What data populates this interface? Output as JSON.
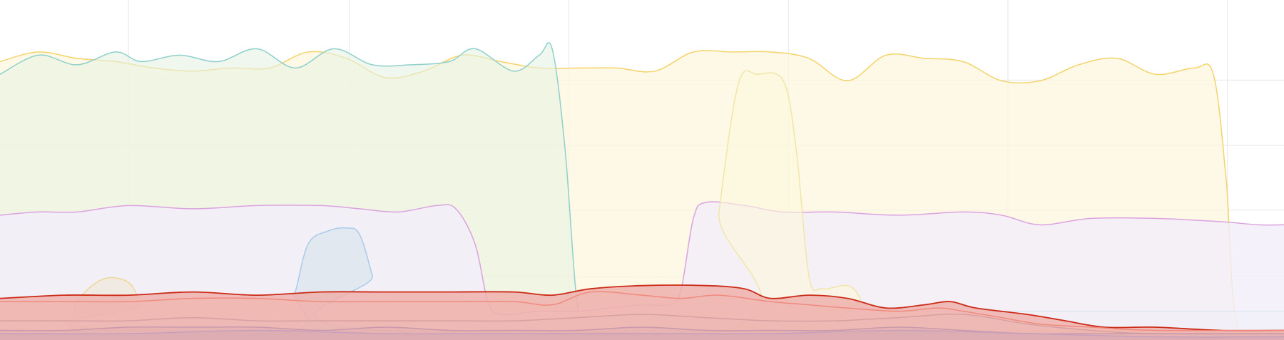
{
  "chart_data": {
    "type": "area",
    "title": "",
    "xlabel": "",
    "ylabel": "",
    "grid": true,
    "legend": "none",
    "x_range": [
      0,
      100
    ],
    "y_range": [
      0,
      100
    ],
    "x_grid": [
      10,
      27.2,
      44.3,
      61.4,
      78.5,
      95.6
    ],
    "y_grid": [
      19.8,
      40.6,
      60.8,
      81.2
    ],
    "series": [
      {
        "id": "s-yellow",
        "color": "#f3d36b",
        "fill": "#fdf6dc",
        "fill_opacity": 0.7,
        "points": [
          [
            0,
            87
          ],
          [
            3,
            90
          ],
          [
            6,
            88
          ],
          [
            9,
            87
          ],
          [
            12,
            85
          ],
          [
            15,
            84
          ],
          [
            18,
            85
          ],
          [
            21,
            85
          ],
          [
            24,
            90
          ],
          [
            27,
            88
          ],
          [
            30,
            82
          ],
          [
            33,
            84
          ],
          [
            36,
            89
          ],
          [
            39,
            87
          ],
          [
            42,
            85
          ],
          [
            45,
            85
          ],
          [
            48,
            85
          ],
          [
            51,
            84
          ],
          [
            54,
            90
          ],
          [
            57,
            90
          ],
          [
            60,
            90
          ],
          [
            63,
            88
          ],
          [
            66,
            81
          ],
          [
            69,
            89
          ],
          [
            72,
            88
          ],
          [
            75,
            87
          ],
          [
            78,
            81
          ],
          [
            81,
            81
          ],
          [
            84,
            86
          ],
          [
            87,
            88
          ],
          [
            90,
            83
          ],
          [
            93,
            85
          ],
          [
            94.5,
            83
          ],
          [
            95.5,
            50
          ],
          [
            96.5,
            3
          ],
          [
            100,
            3
          ]
        ]
      },
      {
        "id": "s-teal",
        "color": "#8fd0cd",
        "fill": "#e6f2e2",
        "fill_opacity": 0.6,
        "points": [
          [
            0,
            83
          ],
          [
            3,
            89
          ],
          [
            6,
            86
          ],
          [
            9,
            90
          ],
          [
            11,
            87
          ],
          [
            14,
            89
          ],
          [
            17,
            87
          ],
          [
            20,
            91
          ],
          [
            23,
            85
          ],
          [
            26,
            91
          ],
          [
            29,
            86
          ],
          [
            32,
            86
          ],
          [
            35,
            87
          ],
          [
            37,
            91
          ],
          [
            40,
            84
          ],
          [
            42,
            89
          ],
          [
            43,
            91
          ],
          [
            44,
            60
          ],
          [
            45,
            10
          ],
          [
            46,
            9
          ],
          [
            48,
            9
          ],
          [
            100,
            9
          ]
        ]
      },
      {
        "id": "s-lavender",
        "color": "#dca2e0",
        "fill": "#f3eefa",
        "fill_opacity": 0.8,
        "points": [
          [
            0,
            39
          ],
          [
            3,
            40
          ],
          [
            6,
            40
          ],
          [
            10,
            42
          ],
          [
            15,
            41
          ],
          [
            20,
            42
          ],
          [
            25,
            42
          ],
          [
            28,
            41
          ],
          [
            31,
            40
          ],
          [
            34,
            42
          ],
          [
            35.5,
            41
          ],
          [
            37,
            30
          ],
          [
            38,
            12
          ],
          [
            39,
            8
          ],
          [
            42,
            9
          ],
          [
            45,
            9
          ],
          [
            50,
            11
          ],
          [
            52,
            11
          ],
          [
            53,
            15
          ],
          [
            54,
            38
          ],
          [
            55,
            43
          ],
          [
            58,
            42
          ],
          [
            61,
            40
          ],
          [
            65,
            40
          ],
          [
            70,
            39
          ],
          [
            75,
            40
          ],
          [
            78,
            39
          ],
          [
            81,
            36
          ],
          [
            85,
            38
          ],
          [
            90,
            38
          ],
          [
            95,
            37
          ],
          [
            98,
            36
          ],
          [
            100,
            36
          ]
        ]
      },
      {
        "id": "s-blush",
        "color": "#e9c1c0",
        "fill": "#f6e8e8",
        "fill_opacity": 0.7,
        "points": [
          [
            0,
            0
          ],
          [
            100,
            0
          ]
        ]
      },
      {
        "id": "s-pale-yellow",
        "color": "#f1e5a8",
        "fill": "#fbf7dc",
        "fill_opacity": 0.6,
        "points": [
          [
            0,
            2
          ],
          [
            55,
            2
          ],
          [
            56,
            40
          ],
          [
            57.5,
            80
          ],
          [
            59,
            83
          ],
          [
            61,
            81
          ],
          [
            62,
            60
          ],
          [
            63,
            20
          ],
          [
            64,
            16
          ],
          [
            66,
            17
          ],
          [
            67,
            13
          ],
          [
            68,
            3
          ],
          [
            100,
            3
          ]
        ]
      },
      {
        "id": "s-blue",
        "color": "#a9cbe9",
        "fill": "#dfe7ef",
        "fill_opacity": 0.9,
        "points": [
          [
            0,
            2
          ],
          [
            22,
            2
          ],
          [
            23,
            15
          ],
          [
            24,
            30
          ],
          [
            25.5,
            34
          ],
          [
            27,
            35
          ],
          [
            28,
            33
          ],
          [
            29,
            20
          ],
          [
            30,
            3
          ],
          [
            100,
            3
          ]
        ]
      },
      {
        "id": "s-gold-small",
        "color": "#efd79a",
        "fill": "#efe5d0",
        "fill_opacity": 0.5,
        "points": [
          [
            0,
            2
          ],
          [
            5,
            2
          ],
          [
            6,
            12
          ],
          [
            8,
            19
          ],
          [
            10,
            18
          ],
          [
            11,
            11
          ],
          [
            12,
            3
          ],
          [
            100,
            3
          ]
        ]
      },
      {
        "id": "s-red",
        "color": "#cc2a17",
        "fill": "#efb0ac",
        "fill_opacity": 0.85,
        "points": [
          [
            0,
            13
          ],
          [
            5,
            14
          ],
          [
            10,
            14
          ],
          [
            15,
            15
          ],
          [
            20,
            14
          ],
          [
            25,
            15
          ],
          [
            30,
            15
          ],
          [
            35,
            15
          ],
          [
            40,
            15
          ],
          [
            43,
            14
          ],
          [
            46,
            16
          ],
          [
            50,
            17
          ],
          [
            55,
            17
          ],
          [
            58,
            16
          ],
          [
            60,
            13
          ],
          [
            63,
            14
          ],
          [
            66,
            13
          ],
          [
            69,
            10
          ],
          [
            72,
            11
          ],
          [
            74,
            12
          ],
          [
            76,
            10
          ],
          [
            80,
            8
          ],
          [
            83,
            6
          ],
          [
            86,
            4
          ],
          [
            90,
            4
          ],
          [
            95,
            3
          ],
          [
            100,
            3
          ]
        ]
      },
      {
        "id": "s-salmon",
        "color": "#f08a7e",
        "fill": "#f2b6b0",
        "fill_opacity": 0.3,
        "points": [
          [
            0,
            12
          ],
          [
            5,
            12
          ],
          [
            10,
            12
          ],
          [
            15,
            13
          ],
          [
            20,
            13
          ],
          [
            25,
            12
          ],
          [
            30,
            12
          ],
          [
            35,
            12
          ],
          [
            40,
            12
          ],
          [
            43,
            11
          ],
          [
            46,
            15
          ],
          [
            50,
            14
          ],
          [
            53,
            13
          ],
          [
            56,
            14
          ],
          [
            60,
            12
          ],
          [
            63,
            11
          ],
          [
            66,
            10
          ],
          [
            70,
            9
          ],
          [
            73,
            10
          ],
          [
            75,
            9
          ],
          [
            78,
            7
          ],
          [
            81,
            5
          ],
          [
            85,
            4
          ],
          [
            90,
            3
          ],
          [
            100,
            3
          ]
        ]
      },
      {
        "id": "s-dusty",
        "color": "#d8a0a0",
        "fill": "#e6b6b5",
        "fill_opacity": 0.25,
        "points": [
          [
            0,
            6
          ],
          [
            5,
            6
          ],
          [
            10,
            6
          ],
          [
            15,
            7
          ],
          [
            20,
            6
          ],
          [
            25,
            6
          ],
          [
            30,
            6
          ],
          [
            35,
            6
          ],
          [
            40,
            6
          ],
          [
            45,
            7
          ],
          [
            50,
            8
          ],
          [
            55,
            7
          ],
          [
            60,
            6
          ],
          [
            65,
            6
          ],
          [
            70,
            7
          ],
          [
            75,
            8
          ],
          [
            80,
            5
          ],
          [
            85,
            3
          ],
          [
            90,
            2
          ],
          [
            100,
            2
          ]
        ]
      },
      {
        "id": "s-mauve-1",
        "color": "#c999ab",
        "fill": "#d9a9b2",
        "fill_opacity": 0.35,
        "points": [
          [
            0,
            3
          ],
          [
            5,
            3
          ],
          [
            10,
            4
          ],
          [
            15,
            4
          ],
          [
            20,
            4
          ],
          [
            25,
            3
          ],
          [
            30,
            4
          ],
          [
            35,
            3
          ],
          [
            40,
            3
          ],
          [
            45,
            3
          ],
          [
            50,
            4
          ],
          [
            55,
            3
          ],
          [
            60,
            3
          ],
          [
            65,
            3
          ],
          [
            70,
            4
          ],
          [
            75,
            3
          ],
          [
            80,
            2
          ],
          [
            85,
            2
          ],
          [
            90,
            2
          ],
          [
            100,
            2
          ]
        ]
      },
      {
        "id": "s-mauve-2",
        "color": "#c6a0bd",
        "fill": "#d0a6b3",
        "fill_opacity": 0.4,
        "points": [
          [
            0,
            2
          ],
          [
            10,
            2
          ],
          [
            20,
            3
          ],
          [
            30,
            2
          ],
          [
            40,
            2
          ],
          [
            50,
            2
          ],
          [
            60,
            2
          ],
          [
            70,
            3
          ],
          [
            80,
            2
          ],
          [
            90,
            1
          ],
          [
            100,
            1
          ]
        ]
      }
    ]
  }
}
